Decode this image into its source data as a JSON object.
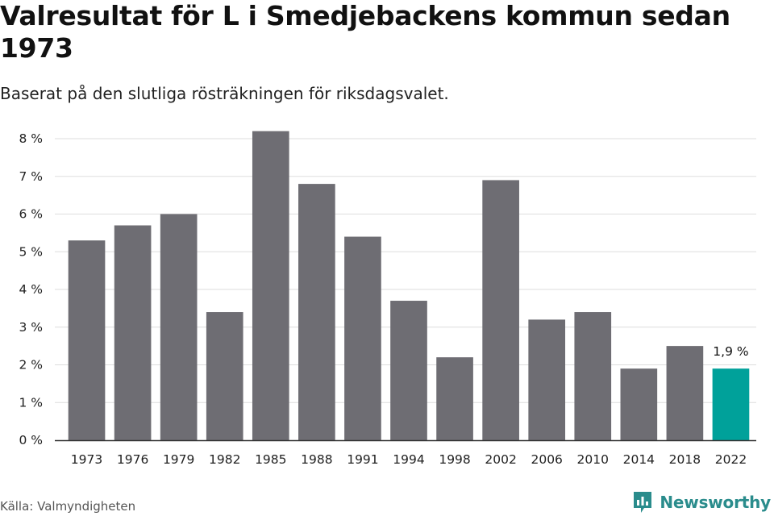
{
  "header": {
    "title": "Valresultat för L i Smedjebackens kommun sedan 1973",
    "subtitle": "Baserat på den slutliga rösträkningen för riksdagsvalet."
  },
  "footer": {
    "source": "Källa: Valmyndigheten",
    "brand": "Newsworthy"
  },
  "colors": {
    "bar": "#6e6d73",
    "highlight": "#00a19a",
    "grid": "#dddddd",
    "axis": "#333333",
    "brand": "#2a8c8c"
  },
  "chart_data": {
    "type": "bar",
    "categories": [
      "1973",
      "1976",
      "1979",
      "1982",
      "1985",
      "1988",
      "1991",
      "1994",
      "1998",
      "2002",
      "2006",
      "2010",
      "2014",
      "2018",
      "2022"
    ],
    "values": [
      5.3,
      5.7,
      6.0,
      3.4,
      8.2,
      6.8,
      5.4,
      3.7,
      2.2,
      6.9,
      3.2,
      3.4,
      1.9,
      2.5,
      1.9
    ],
    "ylim": [
      0,
      8
    ],
    "yticks": [
      0,
      1,
      2,
      3,
      4,
      5,
      6,
      7,
      8
    ],
    "ytick_labels": [
      "0 %",
      "1 %",
      "2 %",
      "3 %",
      "4 %",
      "5 %",
      "6 %",
      "7 %",
      "8 %"
    ],
    "highlight_index": 14,
    "annotations": [
      {
        "category": "2022",
        "text": "1,9 %"
      }
    ],
    "grid": true,
    "legend": "none"
  }
}
